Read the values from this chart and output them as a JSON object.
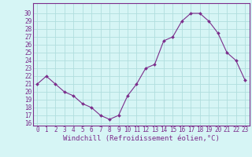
{
  "x": [
    0,
    1,
    2,
    3,
    4,
    5,
    6,
    7,
    8,
    9,
    10,
    11,
    12,
    13,
    14,
    15,
    16,
    17,
    18,
    19,
    20,
    21,
    22,
    23
  ],
  "y": [
    21,
    22,
    21,
    20,
    19.5,
    18.5,
    18,
    17,
    16.5,
    17,
    19.5,
    21,
    23,
    23.5,
    26.5,
    27,
    29,
    30,
    30,
    29,
    27.5,
    25,
    24,
    21.5
  ],
  "line_color": "#7b2d8b",
  "marker": "D",
  "marker_size": 2,
  "bg_color": "#d6f5f5",
  "grid_color": "#b0dede",
  "xlabel": "Windchill (Refroidissement éolien,°C)",
  "xlabel_color": "#7b2d8b",
  "ylim": [
    16,
    31
  ],
  "yticks": [
    16,
    17,
    18,
    19,
    20,
    21,
    22,
    23,
    24,
    25,
    26,
    27,
    28,
    29,
    30
  ],
  "xlim": [
    -0.5,
    23.5
  ],
  "xticks": [
    0,
    1,
    2,
    3,
    4,
    5,
    6,
    7,
    8,
    9,
    10,
    11,
    12,
    13,
    14,
    15,
    16,
    17,
    18,
    19,
    20,
    21,
    22,
    23
  ],
  "tick_color": "#7b2d8b",
  "tick_fontsize": 5.5,
  "xlabel_fontsize": 6.5,
  "axis_color": "#7b2d8b",
  "spine_color": "#7b2d8b"
}
